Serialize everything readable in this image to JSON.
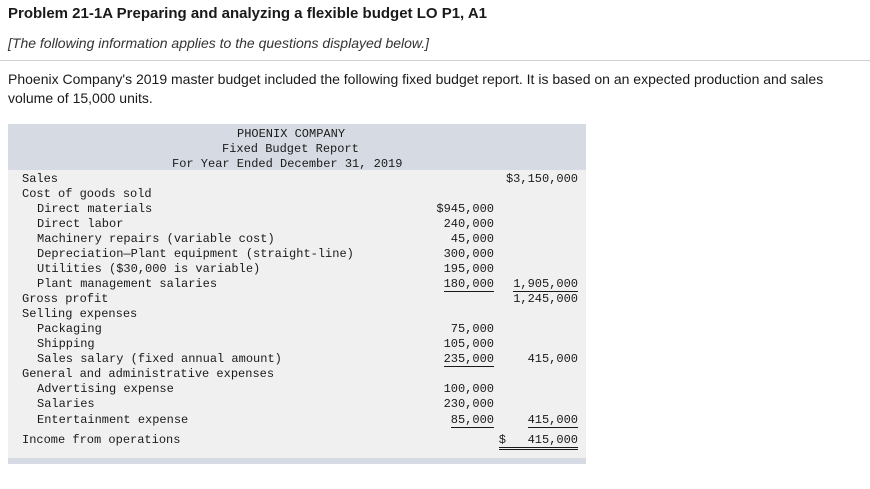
{
  "problem": {
    "title": "Problem 21-1A Preparing and analyzing a flexible budget LO P1, A1",
    "subtitle": "[The following information applies to the questions displayed below.]",
    "intro": "Phoenix Company's 2019 master budget included the following fixed budget report. It is based on an expected production and sales volume of 15,000 units."
  },
  "report": {
    "company": "PHOENIX COMPANY",
    "name": "Fixed Budget Report",
    "period": "For Year Ended December 31, 2019",
    "rows": [
      {
        "label": "Sales",
        "c1": "",
        "c2": "$3,150,000"
      },
      {
        "label": "Cost of goods sold",
        "c1": "",
        "c2": ""
      },
      {
        "label": "Direct materials",
        "c1": "$945,000",
        "c2": ""
      },
      {
        "label": "Direct labor",
        "c1": "240,000",
        "c2": ""
      },
      {
        "label": "Machinery repairs (variable cost)",
        "c1": "45,000",
        "c2": ""
      },
      {
        "label": "Depreciation—Plant equipment (straight-line)",
        "c1": "300,000",
        "c2": ""
      },
      {
        "label": "Utilities ($30,000 is variable)",
        "c1": "195,000",
        "c2": ""
      },
      {
        "label": "Plant management salaries",
        "c1": "180,000",
        "c2": "1,905,000"
      },
      {
        "label": "Gross profit",
        "c1": "",
        "c2": "1,245,000"
      },
      {
        "label": "Selling expenses",
        "c1": "",
        "c2": ""
      },
      {
        "label": "Packaging",
        "c1": "75,000",
        "c2": ""
      },
      {
        "label": "Shipping",
        "c1": "105,000",
        "c2": ""
      },
      {
        "label": "Sales salary (fixed annual amount)",
        "c1": "235,000",
        "c2": "415,000"
      },
      {
        "label": "General and administrative expenses",
        "c1": "",
        "c2": ""
      },
      {
        "label": "Advertising expense",
        "c1": "100,000",
        "c2": ""
      },
      {
        "label": "Salaries",
        "c1": "230,000",
        "c2": ""
      },
      {
        "label": "Entertainment expense",
        "c1": "85,000",
        "c2": "415,000"
      },
      {
        "label": "Income from operations",
        "c1": "",
        "c2": "$   415,000"
      }
    ]
  }
}
